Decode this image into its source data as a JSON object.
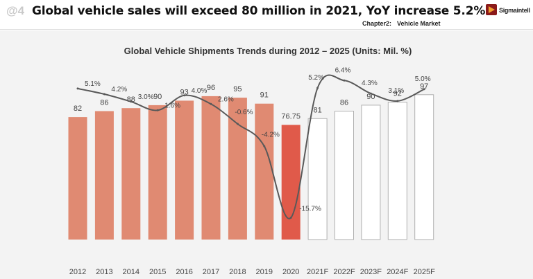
{
  "header": {
    "slide_number": "@4",
    "headline": "Global vehicle sales will exceed 80 million in 2021, YoY increase 5.2%",
    "chapter_label": "Chapter2:",
    "chapter_name": "Vehicle Market",
    "logo_text": "Sigmaintell"
  },
  "colors": {
    "bar_historic": "#e08a72",
    "bar_2020": "#e05a4a",
    "bar_forecast_fill": "#ffffff",
    "bar_forecast_stroke": "#b0b0b0",
    "line": "#595959"
  },
  "chart_data": {
    "type": "bar",
    "title": "Global Vehicle Shipments Trends during 2012 – 2025 (Units: Mil. %)",
    "categories": [
      "2012",
      "2013",
      "2014",
      "2015",
      "2016",
      "2017",
      "2018",
      "2019",
      "2020",
      "2021F",
      "2022F",
      "2023F",
      "2024F",
      "2025F"
    ],
    "series": [
      {
        "type": "bar",
        "values": [
          82,
          86,
          88,
          90,
          93,
          96,
          95,
          91,
          76.75,
          81,
          86,
          90,
          92,
          97
        ],
        "labels": [
          "82",
          "86",
          "88",
          "90",
          "93",
          "96",
          "95",
          "91",
          "76.75",
          "81",
          "86",
          "90",
          "92",
          "97"
        ],
        "forecast_from_index": 9
      },
      {
        "type": "line",
        "values": [
          5.1,
          4.2,
          3.0,
          1.6,
          4.0,
          2.6,
          -0.6,
          -4.2,
          -15.7,
          5.2,
          6.4,
          4.3,
          3.1,
          5.0
        ],
        "labels": [
          "5.1%",
          "4.2%",
          "3.0%",
          "1.6%",
          "4.0%",
          "2.6%",
          "-0.6%",
          "-4.2%",
          "-15.7%",
          "5.2%",
          "6.4%",
          "4.3%",
          "3.1%",
          "5.0%"
        ]
      }
    ],
    "bar_axis_range": [
      0,
      140
    ],
    "line_axis_range": [
      -19,
      10
    ],
    "grid": false,
    "legend": "none"
  }
}
